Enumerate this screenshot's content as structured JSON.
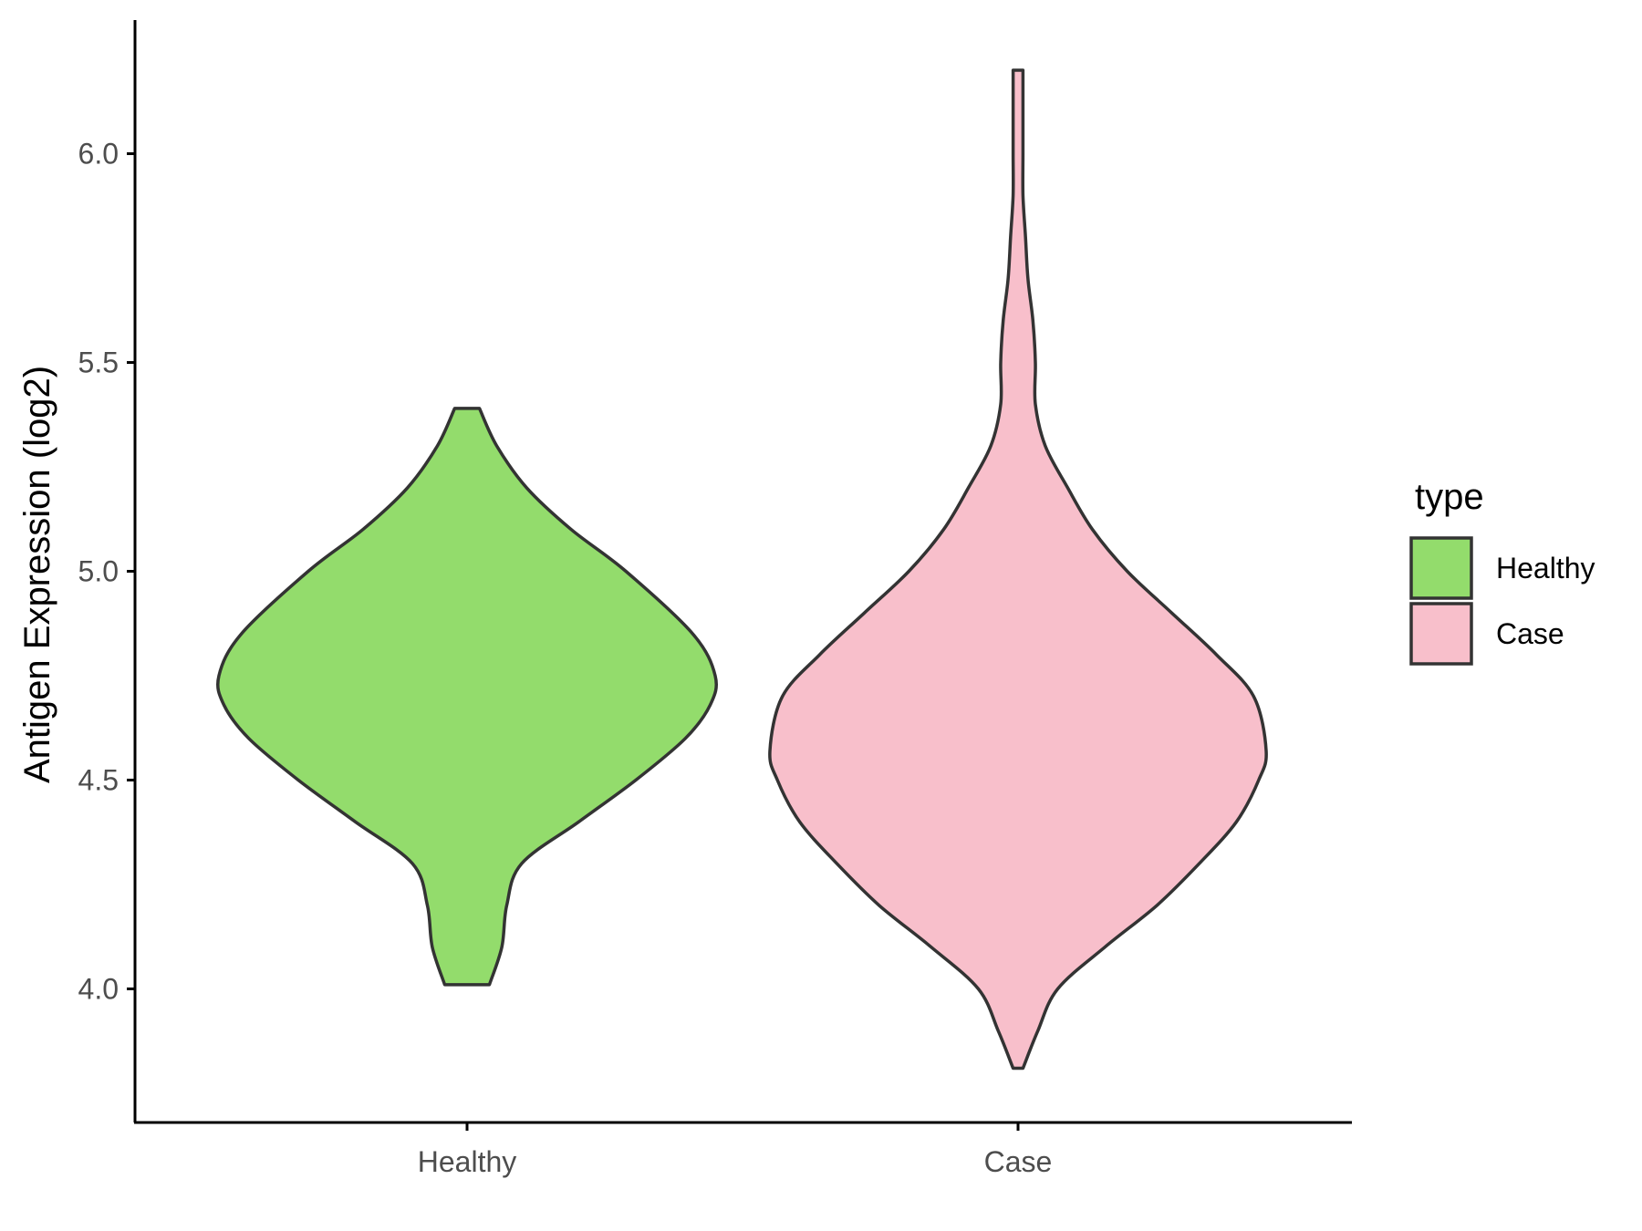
{
  "chart_data": {
    "type": "violin",
    "xlabel": "",
    "ylabel": "Antigen Expression (log2)",
    "ylim": [
      3.68,
      6.32
    ],
    "yticks": [
      4.0,
      4.5,
      5.0,
      5.5,
      6.0
    ],
    "ytick_labels": [
      "4.0",
      "4.5",
      "5.0",
      "5.5",
      "6.0"
    ],
    "categories": [
      "Healthy",
      "Case"
    ],
    "grid": false,
    "legend": {
      "title": "type",
      "position": "right",
      "entries": [
        "Healthy",
        "Case"
      ]
    },
    "series": [
      {
        "name": "Healthy",
        "color": "#93DC6C",
        "min": 4.01,
        "max": 5.39,
        "density_profile": [
          [
            4.01,
            0.09
          ],
          [
            4.1,
            0.14
          ],
          [
            4.2,
            0.16
          ],
          [
            4.3,
            0.22
          ],
          [
            4.4,
            0.45
          ],
          [
            4.5,
            0.68
          ],
          [
            4.6,
            0.88
          ],
          [
            4.68,
            0.98
          ],
          [
            4.75,
            1.0
          ],
          [
            4.85,
            0.91
          ],
          [
            5.0,
            0.64
          ],
          [
            5.1,
            0.42
          ],
          [
            5.2,
            0.24
          ],
          [
            5.3,
            0.12
          ],
          [
            5.39,
            0.05
          ]
        ]
      },
      {
        "name": "Case",
        "color": "#F8BFCB",
        "min": 3.81,
        "max": 6.2,
        "density_profile": [
          [
            3.81,
            0.02
          ],
          [
            3.9,
            0.08
          ],
          [
            4.0,
            0.16
          ],
          [
            4.1,
            0.35
          ],
          [
            4.2,
            0.56
          ],
          [
            4.3,
            0.73
          ],
          [
            4.4,
            0.88
          ],
          [
            4.5,
            0.97
          ],
          [
            4.57,
            1.0
          ],
          [
            4.7,
            0.95
          ],
          [
            4.8,
            0.8
          ],
          [
            4.9,
            0.62
          ],
          [
            5.0,
            0.44
          ],
          [
            5.1,
            0.3
          ],
          [
            5.2,
            0.2
          ],
          [
            5.3,
            0.11
          ],
          [
            5.4,
            0.07
          ],
          [
            5.5,
            0.07
          ],
          [
            5.6,
            0.06
          ],
          [
            5.7,
            0.04
          ],
          [
            5.8,
            0.03
          ],
          [
            5.9,
            0.02
          ],
          [
            6.0,
            0.02
          ],
          [
            6.1,
            0.02
          ],
          [
            6.2,
            0.02
          ]
        ]
      }
    ]
  }
}
